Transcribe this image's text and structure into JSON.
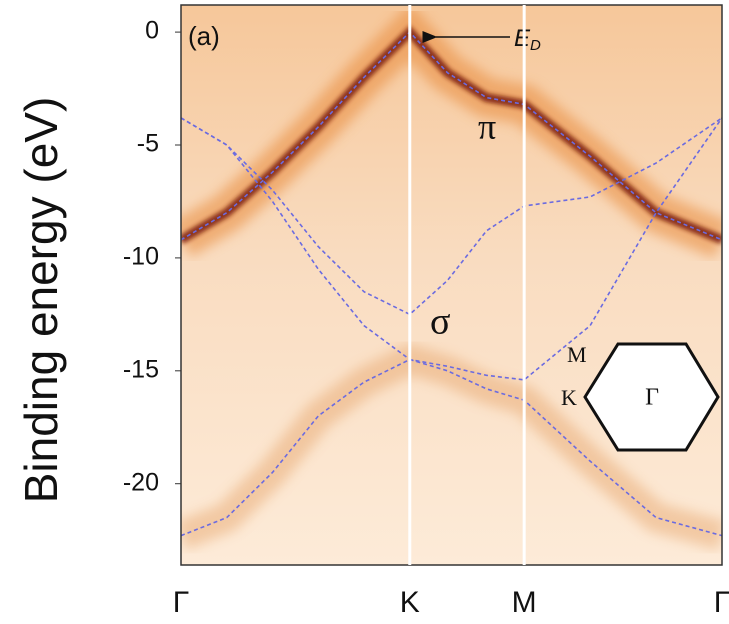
{
  "chart_data": {
    "type": "band-structure",
    "y_label": "Binding energy (eV)",
    "ylim": [
      -23.6,
      1.2
    ],
    "yticks": [
      0,
      -5,
      -10,
      -15,
      -20
    ],
    "xlim": [
      0,
      4.02
    ],
    "xticks": [
      {
        "value": 0,
        "label": "Γ"
      },
      {
        "value": 1.7,
        "label": "K"
      },
      {
        "value": 2.55,
        "label": "M"
      },
      {
        "value": 4.02,
        "label": "Γ"
      }
    ],
    "x": [
      0,
      0.34,
      0.68,
      1.02,
      1.36,
      1.7,
      1.98,
      2.27,
      2.55,
      3.04,
      3.53,
      4.02
    ],
    "series": [
      {
        "color": "#6b6be0",
        "values": [
          -9.2,
          -8,
          -6.2,
          -4.2,
          -2,
          0,
          -1.8,
          -2.9,
          -3.2,
          -5.5,
          -8,
          -9.2
        ]
      },
      {
        "color": "#6b6be0",
        "values": [
          -3.8,
          -5,
          -7,
          -9.5,
          -11.5,
          -12.5,
          -11,
          -8.8,
          -7.7,
          -7.3,
          -5.8,
          -3.8
        ]
      },
      {
        "color": "#6b6be0",
        "values": [
          -3.8,
          -5,
          -7.5,
          -10.5,
          -13,
          -14.5,
          -14.8,
          -15.2,
          -15.4,
          -13,
          -8,
          -3.8
        ]
      },
      {
        "color": "#6b6be0",
        "values": [
          -22.3,
          -21.5,
          -19.5,
          -17,
          -15.5,
          -14.5,
          -15,
          -15.8,
          -16.3,
          -19,
          -21.5,
          -22.3
        ]
      }
    ],
    "annotations": {
      "panel": "(a)",
      "dirac_point": "E",
      "dirac_point_subscript": "D",
      "pi": "π",
      "sigma": "σ"
    },
    "inset": {
      "labels": [
        "M",
        "K",
        "Γ"
      ]
    }
  }
}
